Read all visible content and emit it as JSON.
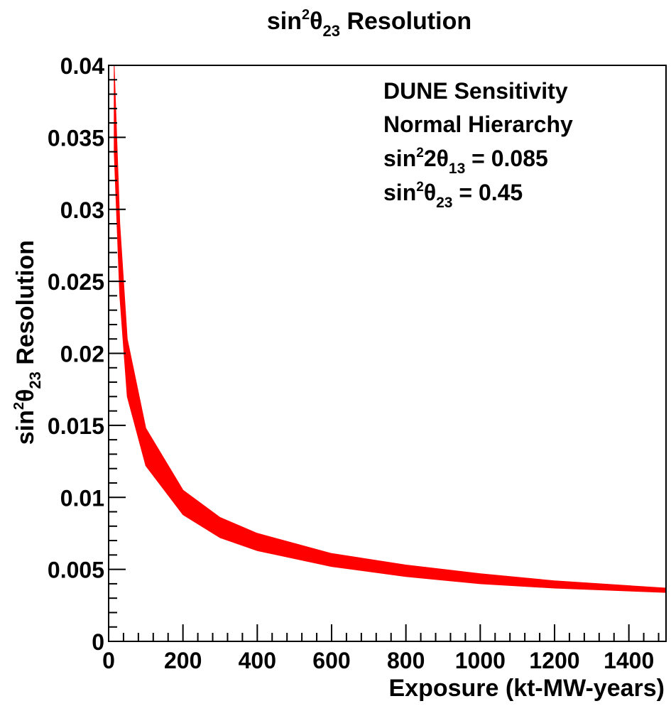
{
  "chart_data": {
    "type": "area",
    "title": {
      "base": "sin",
      "sup": "2",
      "mid": "θ",
      "sub": "23",
      "tail": " Resolution"
    },
    "xlabel": "Exposure (kt-MW-years)",
    "ylabel": {
      "base": "sin",
      "sup": "2",
      "mid": "θ",
      "sub": "23",
      "tail": " Resolution"
    },
    "xlim": [
      0,
      1500
    ],
    "ylim": [
      0,
      0.04
    ],
    "x_ticks": [
      0,
      200,
      400,
      600,
      800,
      1000,
      1200,
      1400
    ],
    "x_tick_labels": [
      "0",
      "200",
      "400",
      "600",
      "800",
      "1000",
      "1200",
      "1400"
    ],
    "y_ticks": [
      0,
      0.005,
      0.01,
      0.015,
      0.02,
      0.025,
      0.03,
      0.035,
      0.04
    ],
    "y_tick_labels": [
      "0",
      "0.005",
      "0.01",
      "0.015",
      "0.02",
      "0.025",
      "0.03",
      "0.035",
      "0.04"
    ],
    "grid": false,
    "series": [
      {
        "color": "#ff0000",
        "x": [
          15,
          30,
          50,
          100,
          200,
          300,
          400,
          600,
          800,
          1000,
          1200,
          1500
        ],
        "upper": [
          0.04,
          0.029,
          0.021,
          0.0148,
          0.0105,
          0.0086,
          0.0075,
          0.0061,
          0.0053,
          0.0047,
          0.0042,
          0.0037
        ],
        "lower": [
          0.034,
          0.024,
          0.017,
          0.0122,
          0.0088,
          0.0072,
          0.0063,
          0.0052,
          0.0045,
          0.004,
          0.0037,
          0.0034
        ]
      }
    ],
    "legend_box": {
      "position": "top-right",
      "lines": [
        {
          "base": "DUNE Sensitivity"
        },
        {
          "base": "Normal Hierarchy"
        },
        {
          "base": "sin",
          "sup": "2",
          "mid": "2θ",
          "sub": "13",
          "tail": " = 0.085"
        },
        {
          "base": "sin",
          "sup": "2",
          "mid": "θ",
          "sub": "23",
          "tail": " = 0.45"
        }
      ]
    }
  }
}
